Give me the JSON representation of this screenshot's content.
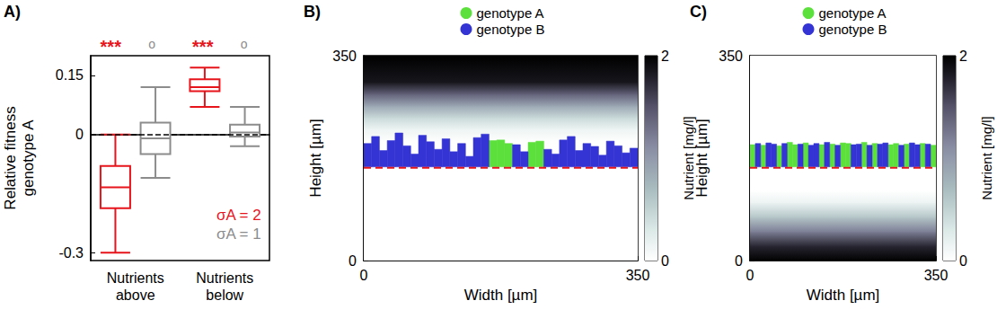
{
  "chart_data": [
    {
      "type": "boxplot",
      "panel": "A)",
      "categories": [
        "Nutrients above",
        "Nutrients below"
      ],
      "ylabel": "Relative fitness genotype A",
      "ylim": [
        -0.32,
        0.2
      ],
      "yticks": [
        -0.3,
        0,
        0.15
      ],
      "reference_line": 0,
      "grid": false,
      "legend": "lower right",
      "series": [
        {
          "name": "σA = 2",
          "color": "#e8141c",
          "values": [
            [
              -0.3,
              -0.187,
              -0.134,
              -0.08,
              0
            ],
            [
              0.07,
              0.11,
              0.12,
              0.14,
              0.17
            ]
          ]
        },
        {
          "name": "σA = 1",
          "color": "#8c8c8c",
          "values": [
            [
              -0.11,
              -0.05,
              -0.01,
              0.03,
              0.12
            ],
            [
              -0.03,
              -0.005,
              0.005,
              0.025,
              0.07
            ]
          ]
        }
      ],
      "annotations": [
        {
          "text": "***",
          "category": "Nutrients above",
          "series": "σA = 2"
        },
        {
          "text": "o",
          "category": "Nutrients above",
          "series": "σA = 1"
        },
        {
          "text": "***",
          "category": "Nutrients below",
          "series": "σA = 2"
        },
        {
          "text": "o",
          "category": "Nutrients below",
          "series": "σA = 1"
        }
      ]
    },
    {
      "type": "heatmap",
      "panel": "B)",
      "xlabel": "Width [µm]",
      "ylabel": "Height [µm]",
      "xlim": [
        0,
        350
      ],
      "ylim": [
        0,
        350
      ],
      "xticks": [
        0,
        350
      ],
      "yticks": [
        0,
        350
      ],
      "grid": false,
      "legend": "top",
      "series": [
        {
          "name": "genotype A",
          "color": "#5ce03c"
        },
        {
          "name": "genotype B",
          "color": "#3434d4"
        }
      ],
      "substratum": 160,
      "colonies": {
        "x_edges": [
          0,
          10,
          20,
          30,
          40,
          50,
          60,
          70,
          80,
          90,
          100,
          110,
          120,
          130,
          140,
          150,
          160,
          170,
          180,
          190,
          200,
          210,
          220,
          230,
          240,
          250,
          260,
          270,
          280,
          290,
          300,
          310,
          320,
          330,
          340,
          350
        ],
        "top": [
          200,
          212,
          188,
          205,
          218,
          196,
          182,
          214,
          203,
          190,
          208,
          186,
          200,
          178,
          210,
          216,
          205,
          206,
          200,
          198,
          186,
          202,
          204,
          190,
          182,
          206,
          212,
          188,
          200,
          195,
          180,
          204,
          196,
          184,
          192
        ],
        "genotype": [
          "genotype B",
          "genotype B",
          "genotype B",
          "genotype B",
          "genotype B",
          "genotype B",
          "genotype B",
          "genotype B",
          "genotype B",
          "genotype B",
          "genotype B",
          "genotype B",
          "genotype B",
          "genotype B",
          "genotype B",
          "genotype B",
          "genotype A",
          "genotype A",
          "genotype A",
          "genotype B",
          "genotype B",
          "genotype A",
          "genotype A",
          "genotype B",
          "genotype B",
          "genotype B",
          "genotype B",
          "genotype B",
          "genotype B",
          "genotype B",
          "genotype B",
          "genotype B",
          "genotype B",
          "genotype B",
          "genotype B"
        ]
      },
      "nutrient": {
        "height": [
          0,
          160,
          205,
          225,
          245,
          265,
          285,
          305,
          350
        ],
        "values": [
          0,
          0,
          0.02,
          0.15,
          0.45,
          0.9,
          1.4,
          1.85,
          2
        ]
      },
      "colorbar": {
        "label": "Nutrient [mg/l]",
        "range": [
          0,
          2
        ],
        "ticks": [
          0,
          2
        ]
      }
    },
    {
      "type": "heatmap",
      "panel": "C)",
      "xlabel": "Width [µm]",
      "ylabel": "Height [µm]",
      "xlim": [
        0,
        350
      ],
      "ylim": [
        0,
        350
      ],
      "xticks": [
        0,
        350
      ],
      "yticks": [
        0,
        350
      ],
      "grid": false,
      "legend": "top",
      "series": [
        {
          "name": "genotype A",
          "color": "#5ce03c"
        },
        {
          "name": "genotype B",
          "color": "#3434d4"
        }
      ],
      "substratum": 160,
      "colonies": {
        "x_edges": [
          0,
          10,
          20,
          30,
          40,
          50,
          60,
          70,
          80,
          90,
          100,
          110,
          120,
          130,
          140,
          150,
          160,
          170,
          180,
          190,
          200,
          210,
          220,
          230,
          240,
          250,
          260,
          270,
          280,
          290,
          300,
          310,
          320,
          330,
          340,
          350
        ],
        "top": [
          198,
          200,
          197,
          201,
          199,
          196,
          200,
          202,
          198,
          199,
          201,
          197,
          200,
          198,
          202,
          199,
          197,
          201,
          200,
          198,
          199,
          202,
          197,
          200,
          199,
          201,
          198,
          200,
          197,
          199,
          201,
          198,
          200,
          199,
          197
        ],
        "genotype": [
          "genotype A",
          "genotype B",
          "genotype A",
          "genotype B",
          "genotype B",
          "genotype A",
          "genotype B",
          "genotype A",
          "genotype A",
          "genotype B",
          "genotype A",
          "genotype B",
          "genotype B",
          "genotype A",
          "genotype B",
          "genotype A",
          "genotype B",
          "genotype A",
          "genotype A",
          "genotype B",
          "genotype B",
          "genotype A",
          "genotype B",
          "genotype A",
          "genotype B",
          "genotype B",
          "genotype A",
          "genotype A",
          "genotype B",
          "genotype A",
          "genotype B",
          "genotype B",
          "genotype A",
          "genotype B",
          "genotype A"
        ]
      },
      "nutrient": {
        "height": [
          0,
          25,
          50,
          75,
          100,
          120,
          350
        ],
        "values": [
          2,
          1.75,
          1.2,
          0.6,
          0.15,
          0,
          0
        ]
      },
      "colorbar": {
        "label": "Nutrient [mg/l]",
        "range": [
          0,
          2
        ],
        "ticks": [
          0,
          2
        ]
      }
    }
  ]
}
